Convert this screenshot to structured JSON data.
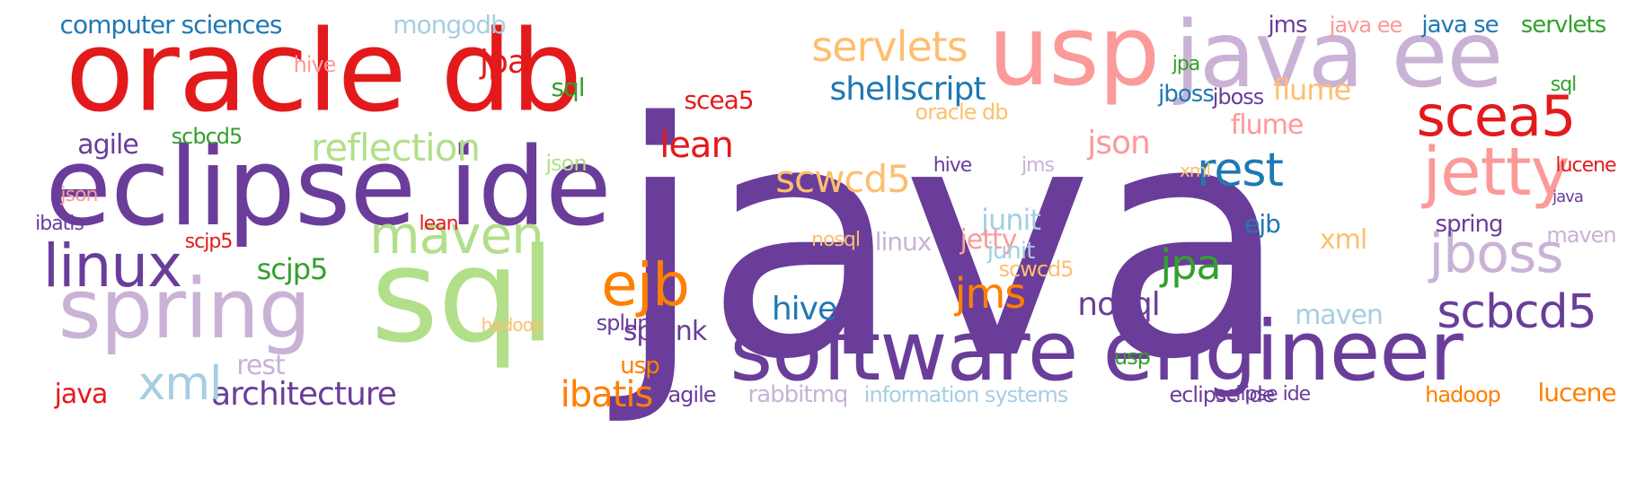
{
  "words": [
    {
      "text": "java",
      "color": "#6a3d9a"
    },
    {
      "text": "oracle db",
      "color": "#e31a1c"
    },
    {
      "text": "eclipse ide",
      "color": "#6a3d9a"
    },
    {
      "text": "software engineer",
      "color": "#6a3d9a"
    },
    {
      "text": "usp",
      "color": "#fb9a99"
    },
    {
      "text": "java ee",
      "color": "#cab2d6"
    },
    {
      "text": "sql",
      "color": "#b2df8a"
    },
    {
      "text": "spring",
      "color": "#cab2d6"
    },
    {
      "text": "linux",
      "color": "#6a3d9a"
    },
    {
      "text": "jetty",
      "color": "#fb9a99"
    },
    {
      "text": "scea5",
      "color": "#e31a1c"
    },
    {
      "text": "jboss",
      "color": "#cab2d6"
    },
    {
      "text": "maven",
      "color": "#b2df8a"
    },
    {
      "text": "servlets",
      "color": "#fdbf6f"
    },
    {
      "text": "reflection",
      "color": "#b2df8a"
    },
    {
      "text": "ejb",
      "color": "#ff7f00"
    },
    {
      "text": "scbcd5",
      "color": "#6a3d9a"
    },
    {
      "text": "architecture",
      "color": "#6a3d9a"
    },
    {
      "text": "ibatis",
      "color": "#ff7f00"
    },
    {
      "text": "xml",
      "color": "#a6cee3"
    },
    {
      "text": "shellscript",
      "color": "#1f78b4"
    },
    {
      "text": "scwcd5",
      "color": "#fdbf6f"
    },
    {
      "text": "rest",
      "color": "#1f78b4"
    },
    {
      "text": "jms",
      "color": "#ff7f00"
    },
    {
      "text": "jpa",
      "color": "#33a02c"
    },
    {
      "text": "nosql",
      "color": "#6a3d9a"
    },
    {
      "text": "hive",
      "color": "#1f78b4"
    },
    {
      "text": "splunk",
      "color": "#6a3d9a"
    },
    {
      "text": "scjp5",
      "color": "#33a02c"
    },
    {
      "text": "json",
      "color": "#fb9a99"
    },
    {
      "text": "lean",
      "color": "#e31a1c"
    },
    {
      "text": "agile",
      "color": "#6a3d9a"
    },
    {
      "text": "flume",
      "color": "#fdbf6f"
    },
    {
      "text": "computer sciences",
      "color": "#1f78b4"
    },
    {
      "text": "mongodb",
      "color": "#a6cee3"
    },
    {
      "text": "information systems",
      "color": "#a6cee3"
    },
    {
      "text": "rabbitmq",
      "color": "#cab2d6"
    },
    {
      "text": "hadoop",
      "color": "#ff7f00"
    },
    {
      "text": "lucene",
      "color": "#ff7f00"
    },
    {
      "text": "eclipse ide",
      "color": "#6a3d9a"
    },
    {
      "text": "java",
      "color": "#e31a1c"
    },
    {
      "text": "junit",
      "color": "#a6cee3"
    },
    {
      "text": "xml",
      "color": "#fdbf6f"
    },
    {
      "text": "maven",
      "color": "#a6cee3"
    },
    {
      "text": "jboss",
      "color": "#1f78b4"
    },
    {
      "text": "jpa",
      "color": "#e31a1c"
    },
    {
      "text": "sql",
      "color": "#33a02c"
    },
    {
      "text": "hive",
      "color": "#fb9a99"
    },
    {
      "text": "scea5",
      "color": "#e31a1c"
    },
    {
      "text": "servlets",
      "color": "#33a02c"
    },
    {
      "text": "java se",
      "color": "#1f78b4"
    },
    {
      "text": "jms",
      "color": "#6a3d9a"
    },
    {
      "text": "java ee",
      "color": "#fb9a99"
    },
    {
      "text": "agile",
      "color": "#6a3d9a"
    },
    {
      "text": "scbcd5",
      "color": "#33a02c"
    },
    {
      "text": "json",
      "color": "#b2df8a"
    },
    {
      "text": "lean",
      "color": "#e31a1c"
    },
    {
      "text": "rest",
      "color": "#cab2d6"
    },
    {
      "text": "usp",
      "color": "#ff7f00"
    },
    {
      "text": "ejb",
      "color": "#1f78b4"
    },
    {
      "text": "splunk",
      "color": "#6a3d9a"
    },
    {
      "text": "jetty",
      "color": "#fb9a99"
    },
    {
      "text": "linux",
      "color": "#cab2d6"
    },
    {
      "text": "junit",
      "color": "#a6cee3"
    },
    {
      "text": "nosql",
      "color": "#fdbf6f"
    },
    {
      "text": "spring",
      "color": "#6a3d9a"
    },
    {
      "text": "maven",
      "color": "#cab2d6"
    },
    {
      "text": "ibatis",
      "color": "#6a3d9a"
    },
    {
      "text": "jpa",
      "color": "#33a02c"
    },
    {
      "text": "sql",
      "color": "#33a02c"
    },
    {
      "text": "hive",
      "color": "#6a3d9a"
    },
    {
      "text": "xml",
      "color": "#fdbf6f"
    },
    {
      "text": "jms",
      "color": "#cab2d6"
    },
    {
      "text": "oracle db",
      "color": "#fdbf6f"
    },
    {
      "text": "usp",
      "color": "#33a02c"
    },
    {
      "text": "flume",
      "color": "#fb9a99"
    },
    {
      "text": "lucene",
      "color": "#e31a1c"
    },
    {
      "text": "hadoop",
      "color": "#fdbf6f"
    },
    {
      "text": "scwcd5",
      "color": "#fdbf6f"
    },
    {
      "text": "scjp5",
      "color": "#e31a1c"
    },
    {
      "text": "jboss",
      "color": "#6a3d9a"
    },
    {
      "text": "eclipse ide",
      "color": "#6a3d9a"
    },
    {
      "text": "json",
      "color": "#fb9a99"
    },
    {
      "text": "java",
      "color": "#6a3d9a"
    }
  ]
}
